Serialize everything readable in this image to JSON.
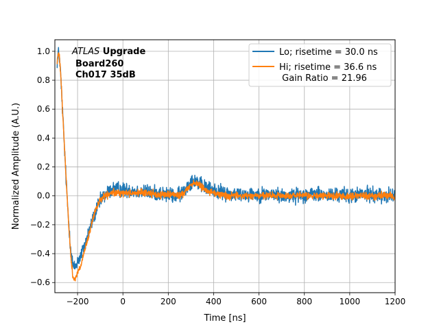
{
  "chart_data": {
    "type": "line",
    "xlabel": "Time [ns]",
    "ylabel": "Normalized Amplitude (A.U.)",
    "xlim": [
      -300,
      1200
    ],
    "ylim": [
      -0.67,
      1.08
    ],
    "x_ticks": [
      -200,
      0,
      200,
      400,
      600,
      800,
      1000,
      1200
    ],
    "y_ticks": [
      -0.6,
      -0.4,
      -0.2,
      0.0,
      0.2,
      0.4,
      0.6,
      0.8,
      1.0
    ],
    "x_tick_labels": [
      "−200",
      "0",
      "200",
      "400",
      "600",
      "800",
      "1000",
      "1200"
    ],
    "y_tick_labels": [
      "−0.6",
      "−0.4",
      "−0.2",
      "0.0",
      "0.2",
      "0.4",
      "0.6",
      "0.8",
      "1.0"
    ],
    "grid": true,
    "legend_position": "top-right",
    "annotation": {
      "experiment": "ATLAS",
      "experiment_suffix": " Upgrade",
      "line2": "Board260",
      "line3": "Ch017 35dB"
    },
    "legend_extra": " Gain Ratio = 21.96",
    "series": [
      {
        "name": "Lo; risetime = 30.0 ns",
        "color": "#1f77b4",
        "noise": 0.025,
        "x": [
          -290,
          -285,
          -280,
          -275,
          -270,
          -265,
          -260,
          -255,
          -250,
          -245,
          -240,
          -235,
          -230,
          -225,
          -220,
          -215,
          -210,
          -205,
          -200,
          -195,
          -190,
          -185,
          -180,
          -170,
          -160,
          -150,
          -140,
          -130,
          -120,
          -110,
          -100,
          -90,
          -80,
          -70,
          -60,
          -50,
          -40,
          -30,
          -20,
          -10,
          0,
          20,
          40,
          60,
          80,
          100,
          120,
          140,
          160,
          180,
          200,
          220,
          240,
          260,
          280,
          300,
          320,
          340,
          360,
          380,
          400,
          420,
          440,
          460,
          480,
          500,
          550,
          600,
          650,
          700,
          750,
          800,
          850,
          900,
          950,
          1000,
          1050,
          1100,
          1150,
          1200
        ],
        "y": [
          0.93,
          0.99,
          0.96,
          0.85,
          0.7,
          0.55,
          0.4,
          0.25,
          0.1,
          -0.04,
          -0.16,
          -0.27,
          -0.36,
          -0.43,
          -0.48,
          -0.5,
          -0.49,
          -0.47,
          -0.45,
          -0.44,
          -0.43,
          -0.41,
          -0.39,
          -0.35,
          -0.3,
          -0.25,
          -0.2,
          -0.15,
          -0.11,
          -0.07,
          -0.04,
          -0.01,
          0.0,
          0.02,
          0.03,
          0.04,
          0.05,
          0.04,
          0.05,
          0.04,
          0.04,
          0.04,
          0.04,
          0.03,
          0.03,
          0.03,
          0.02,
          0.02,
          0.02,
          0.01,
          0.01,
          0.0,
          0.0,
          0.02,
          0.06,
          0.1,
          0.11,
          0.08,
          0.06,
          0.05,
          0.04,
          0.03,
          0.02,
          0.02,
          0.01,
          0.01,
          0.01,
          0.01,
          0.01,
          0.0,
          0.0,
          0.01,
          0.01,
          0.0,
          0.01,
          0.0,
          0.01,
          0.01,
          0.0,
          0.0
        ]
      },
      {
        "name": "Hi; risetime = 36.6 ns",
        "color": "#ff7f0e",
        "noise": 0.012,
        "x": [
          -290,
          -285,
          -280,
          -275,
          -270,
          -265,
          -260,
          -255,
          -250,
          -245,
          -240,
          -235,
          -230,
          -225,
          -220,
          -215,
          -210,
          -205,
          -200,
          -195,
          -190,
          -185,
          -180,
          -170,
          -160,
          -150,
          -140,
          -130,
          -120,
          -110,
          -100,
          -90,
          -80,
          -70,
          -60,
          -50,
          -40,
          -30,
          -20,
          -10,
          0,
          20,
          40,
          60,
          80,
          100,
          120,
          140,
          160,
          180,
          200,
          220,
          240,
          260,
          280,
          300,
          320,
          340,
          360,
          380,
          400,
          420,
          440,
          460,
          480,
          500,
          550,
          600,
          650,
          700,
          750,
          800,
          850,
          900,
          950,
          1000,
          1050,
          1100,
          1150,
          1200
        ],
        "y": [
          0.92,
          0.98,
          0.97,
          0.87,
          0.72,
          0.56,
          0.41,
          0.26,
          0.11,
          -0.04,
          -0.17,
          -0.3,
          -0.41,
          -0.5,
          -0.56,
          -0.58,
          -0.57,
          -0.55,
          -0.53,
          -0.52,
          -0.5,
          -0.48,
          -0.45,
          -0.39,
          -0.33,
          -0.27,
          -0.21,
          -0.15,
          -0.1,
          -0.06,
          -0.03,
          -0.01,
          0.0,
          0.0,
          0.01,
          0.02,
          0.02,
          0.02,
          0.02,
          0.02,
          0.02,
          0.02,
          0.02,
          0.02,
          0.02,
          0.02,
          0.02,
          0.01,
          0.01,
          0.01,
          0.01,
          0.01,
          0.0,
          0.01,
          0.04,
          0.08,
          0.09,
          0.07,
          0.05,
          0.03,
          0.02,
          0.01,
          0.01,
          0.0,
          0.0,
          0.0,
          0.0,
          0.0,
          0.0,
          0.0,
          0.0,
          0.0,
          0.0,
          0.0,
          0.0,
          0.0,
          0.0,
          0.0,
          0.0,
          0.0
        ]
      }
    ]
  }
}
